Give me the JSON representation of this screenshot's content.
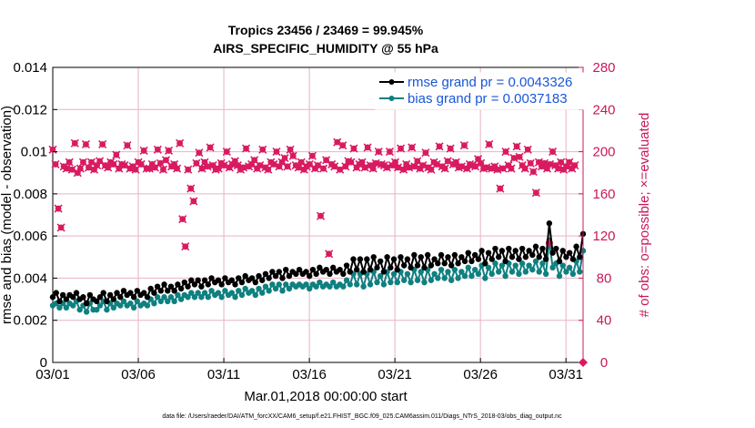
{
  "chart_data": {
    "type": "line",
    "title": "Tropics 23456 / 23469 = 99.945%",
    "subtitle": "AIRS_SPECIFIC_HUMIDITY @ 55 hPa",
    "xlabel": "Mar.01,2018 00:00:00 start",
    "ylabel": "rmse and bias (model - observation)",
    "y2label": "# of obs: o=possible; ×=evaluated",
    "footer": "data file: /Users/raeder/DAI/ATM_forcXX/CAM6_setup/f.e21.FHIST_BGC.f09_025.CAM6assim.011/Diags_NTrS_2018-03/obs_diag_output.nc",
    "xlim": [
      0,
      31
    ],
    "ylim": [
      0,
      0.014
    ],
    "y2lim": [
      0,
      280
    ],
    "x_ticks": [
      0,
      5,
      10,
      15,
      20,
      25,
      30
    ],
    "x_tick_labels": [
      "03/01",
      "03/06",
      "03/11",
      "03/16",
      "03/21",
      "03/26",
      "03/31"
    ],
    "y_ticks": [
      0,
      0.002,
      0.004,
      0.006,
      0.008,
      0.01,
      0.012,
      0.014
    ],
    "y_tick_labels": [
      "0",
      "0.002",
      "0.004",
      "0.006",
      "0.008",
      "0.01",
      "0.012",
      "0.014"
    ],
    "y2_ticks": [
      0,
      40,
      80,
      120,
      160,
      200,
      240,
      280
    ],
    "y2_tick_labels": [
      "0",
      "40",
      "80",
      "120",
      "160",
      "200",
      "240",
      "280"
    ],
    "legend": {
      "position": "top-right",
      "entries": [
        {
          "label": "rmse grand pr = 0.0043326",
          "color": "#000000"
        },
        {
          "label": "bias grand pr = 0.0037183",
          "color": "#0f8080"
        }
      ]
    },
    "colors": {
      "rmse": "#000000",
      "bias": "#0f8080",
      "obs": "#d81b60",
      "grid": "#e6b3c4"
    },
    "x_step": 0.25,
    "series": [
      {
        "name": "rmse",
        "values": [
          0.0031,
          0.0033,
          0.0029,
          0.0032,
          0.003,
          0.0032,
          0.0031,
          0.0033,
          0.003,
          0.0031,
          0.0028,
          0.0032,
          0.003,
          0.0029,
          0.0031,
          0.0033,
          0.0029,
          0.0032,
          0.003,
          0.0033,
          0.0031,
          0.0034,
          0.0032,
          0.0033,
          0.0031,
          0.0034,
          0.0032,
          0.0033,
          0.0031,
          0.0035,
          0.0033,
          0.0036,
          0.0034,
          0.0037,
          0.0034,
          0.0036,
          0.0034,
          0.0037,
          0.0035,
          0.0038,
          0.0036,
          0.0039,
          0.0037,
          0.0039,
          0.0036,
          0.0039,
          0.0037,
          0.004,
          0.0038,
          0.0039,
          0.0037,
          0.004,
          0.0038,
          0.0039,
          0.0037,
          0.004,
          0.0038,
          0.0041,
          0.0039,
          0.004,
          0.0038,
          0.0041,
          0.0039,
          0.0042,
          0.004,
          0.0043,
          0.0041,
          0.0043,
          0.004,
          0.0044,
          0.0041,
          0.0043,
          0.0042,
          0.0044,
          0.0042,
          0.0043,
          0.0041,
          0.0044,
          0.0042,
          0.0045,
          0.0043,
          0.0044,
          0.0042,
          0.0045,
          0.0043,
          0.0044,
          0.0042,
          0.0046,
          0.0043,
          0.0049,
          0.0044,
          0.0049,
          0.0043,
          0.0049,
          0.0044,
          0.005,
          0.0045,
          0.0048,
          0.0043,
          0.005,
          0.0045,
          0.0049,
          0.0044,
          0.005,
          0.0046,
          0.0049,
          0.0045,
          0.0051,
          0.0046,
          0.005,
          0.0045,
          0.0051,
          0.0046,
          0.0049,
          0.0047,
          0.0051,
          0.0047,
          0.005,
          0.0046,
          0.0051,
          0.0047,
          0.005,
          0.0048,
          0.0052,
          0.0048,
          0.0051,
          0.0049,
          0.0053,
          0.0047,
          0.0052,
          0.0049,
          0.0054,
          0.005,
          0.0053,
          0.0048,
          0.0054,
          0.005,
          0.0053,
          0.0049,
          0.0054,
          0.005,
          0.0053,
          0.0051,
          0.0055,
          0.005,
          0.0054,
          0.0049,
          0.0066,
          0.0052,
          0.0054,
          0.0048,
          0.0053,
          0.005,
          0.0052,
          0.0049,
          0.0055,
          0.005,
          0.0061
        ]
      },
      {
        "name": "bias",
        "values": [
          0.0027,
          0.0028,
          0.0026,
          0.0028,
          0.0026,
          0.0028,
          0.0027,
          0.0029,
          0.0025,
          0.0027,
          0.0024,
          0.0028,
          0.0025,
          0.0025,
          0.0027,
          0.0029,
          0.0025,
          0.0028,
          0.0026,
          0.0028,
          0.0027,
          0.0029,
          0.0027,
          0.0028,
          0.0026,
          0.0029,
          0.0027,
          0.0028,
          0.0027,
          0.003,
          0.0028,
          0.0031,
          0.0029,
          0.0031,
          0.0029,
          0.0031,
          0.0029,
          0.0032,
          0.003,
          0.0032,
          0.0031,
          0.0033,
          0.0031,
          0.0033,
          0.0031,
          0.0033,
          0.0031,
          0.0034,
          0.0032,
          0.0033,
          0.0031,
          0.0034,
          0.0032,
          0.0033,
          0.0031,
          0.0034,
          0.0032,
          0.0035,
          0.0033,
          0.0034,
          0.0032,
          0.0035,
          0.0033,
          0.0036,
          0.0034,
          0.0037,
          0.0035,
          0.0037,
          0.0034,
          0.0037,
          0.0035,
          0.0037,
          0.0036,
          0.0037,
          0.0036,
          0.0037,
          0.0035,
          0.0037,
          0.0036,
          0.0038,
          0.0036,
          0.0037,
          0.0036,
          0.0038,
          0.0036,
          0.0037,
          0.0036,
          0.0039,
          0.0037,
          0.0042,
          0.0037,
          0.0042,
          0.0036,
          0.0042,
          0.0037,
          0.0043,
          0.0038,
          0.0041,
          0.0037,
          0.0043,
          0.0038,
          0.0042,
          0.0038,
          0.0043,
          0.0039,
          0.0042,
          0.0038,
          0.0044,
          0.0039,
          0.0043,
          0.0038,
          0.0044,
          0.0039,
          0.0042,
          0.004,
          0.0044,
          0.004,
          0.0043,
          0.0039,
          0.0044,
          0.004,
          0.0043,
          0.0041,
          0.0045,
          0.0041,
          0.0044,
          0.0042,
          0.0046,
          0.004,
          0.0045,
          0.0042,
          0.0047,
          0.0043,
          0.0046,
          0.0041,
          0.0047,
          0.0043,
          0.0046,
          0.0042,
          0.0047,
          0.0043,
          0.0046,
          0.0044,
          0.0048,
          0.0043,
          0.0047,
          0.0042,
          0.0058,
          0.0045,
          0.0047,
          0.0041,
          0.0046,
          0.0043,
          0.0045,
          0.0042,
          0.0048,
          0.0043,
          0.0053
        ]
      },
      {
        "name": "obs_evaluated",
        "axis": "right",
        "values": [
          202,
          188,
          146,
          128,
          186,
          184,
          190,
          183,
          208,
          180,
          184,
          190,
          207,
          185,
          190,
          183,
          187,
          191,
          207,
          187,
          185,
          190,
          188,
          197,
          184,
          188,
          187,
          206,
          184,
          186,
          183,
          190,
          188,
          201,
          184,
          184,
          188,
          185,
          202,
          189,
          183,
          192,
          201,
          186,
          188,
          184,
          208,
          136,
          110,
          183,
          165,
          153,
          189,
          199,
          184,
          190,
          186,
          204,
          187,
          183,
          184,
          189,
          187,
          200,
          185,
          188,
          191,
          187,
          183,
          185,
          203,
          186,
          188,
          192,
          184,
          187,
          202,
          185,
          183,
          190,
          188,
          200,
          186,
          190,
          194,
          186,
          202,
          196,
          187,
          185,
          190,
          183,
          186,
          188,
          196,
          184,
          187,
          139,
          184,
          192,
          103,
          188,
          186,
          209,
          183,
          206,
          186,
          191,
          190,
          203,
          185,
          188,
          190,
          185,
          204,
          187,
          184,
          189,
          200,
          188,
          187,
          185,
          200,
          187,
          190,
          185,
          203,
          183,
          188,
          185,
          204,
          186,
          191,
          184,
          187,
          199,
          185,
          183,
          190,
          188,
          205,
          186,
          184,
          191,
          203,
          188,
          190,
          185,
          186,
          206,
          184,
          188,
          187,
          186,
          193,
          189,
          184,
          185,
          207,
          184,
          186,
          183,
          165,
          184,
          200,
          187,
          184,
          194,
          205,
          195,
          187,
          184,
          202,
          189,
          181,
          161,
          190,
          186,
          189,
          184,
          188,
          200,
          187,
          184,
          190,
          183,
          186,
          190,
          184,
          187
        ]
      }
    ]
  }
}
